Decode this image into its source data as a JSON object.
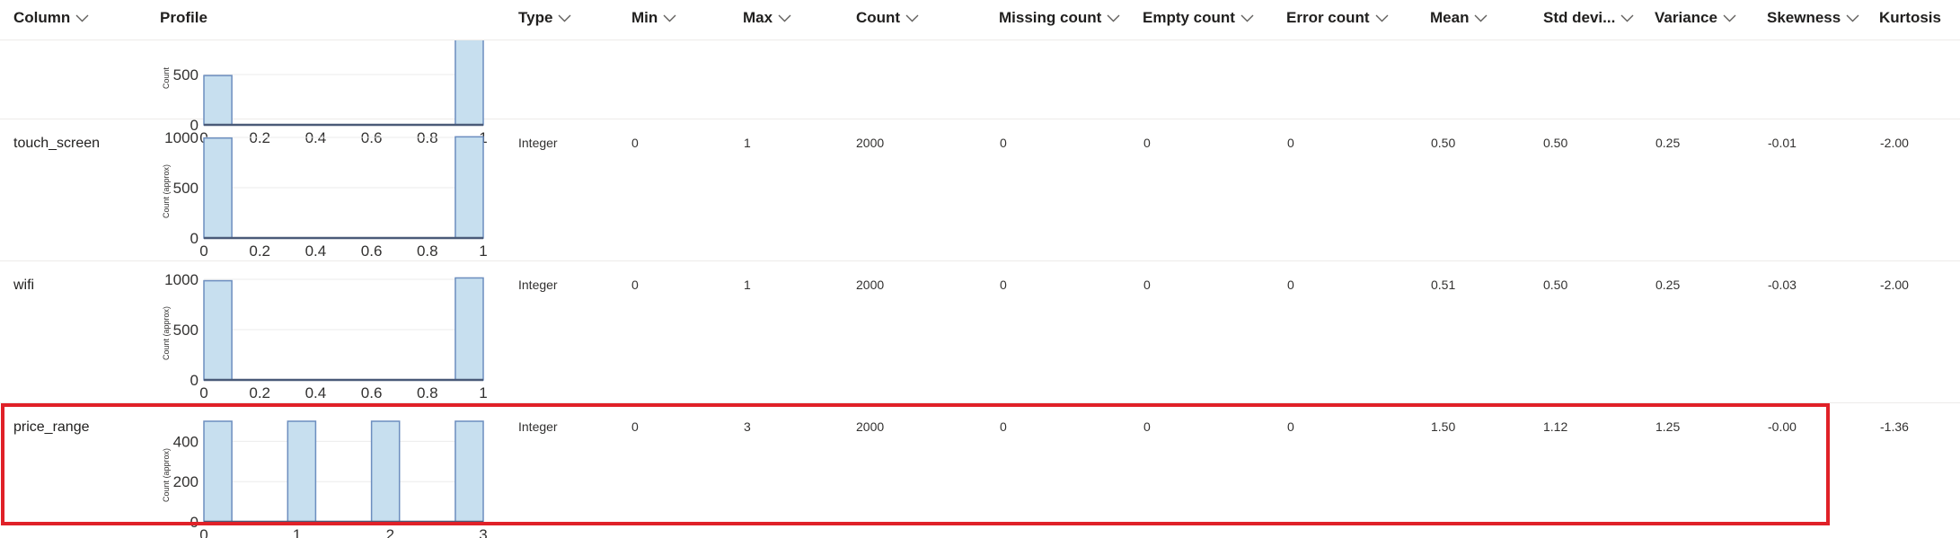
{
  "header": {
    "columns": [
      {
        "key": "column",
        "label": "Column"
      },
      {
        "key": "profile",
        "label": "Profile"
      },
      {
        "key": "type",
        "label": "Type"
      },
      {
        "key": "min",
        "label": "Min"
      },
      {
        "key": "max",
        "label": "Max"
      },
      {
        "key": "count",
        "label": "Count"
      },
      {
        "key": "missing",
        "label": "Missing count"
      },
      {
        "key": "empty",
        "label": "Empty count"
      },
      {
        "key": "error",
        "label": "Error count"
      },
      {
        "key": "mean",
        "label": "Mean"
      },
      {
        "key": "std",
        "label": "Std devi..."
      },
      {
        "key": "variance",
        "label": "Variance"
      },
      {
        "key": "skewness",
        "label": "Skewness"
      },
      {
        "key": "kurtosis",
        "label": "Kurtosis"
      }
    ]
  },
  "rows": [
    {
      "name": "",
      "type": "",
      "min": "",
      "max": "",
      "count": "",
      "missing": "",
      "empty": "",
      "error": "",
      "mean": "",
      "std": "",
      "variance": "",
      "skewness": "",
      "kurtosis": "",
      "selected": false
    },
    {
      "name": "touch_screen",
      "type": "Integer",
      "min": "0",
      "max": "1",
      "count": "2000",
      "missing": "0",
      "empty": "0",
      "error": "0",
      "mean": "0.50",
      "std": "0.50",
      "variance": "0.25",
      "skewness": "-0.01",
      "kurtosis": "-2.00",
      "selected": false
    },
    {
      "name": "wifi",
      "type": "Integer",
      "min": "0",
      "max": "1",
      "count": "2000",
      "missing": "0",
      "empty": "0",
      "error": "0",
      "mean": "0.51",
      "std": "0.50",
      "variance": "0.25",
      "skewness": "-0.03",
      "kurtosis": "-2.00",
      "selected": false
    },
    {
      "name": "price_range",
      "type": "Integer",
      "min": "0",
      "max": "3",
      "count": "2000",
      "missing": "0",
      "empty": "0",
      "error": "0",
      "mean": "1.50",
      "std": "1.12",
      "variance": "1.25",
      "skewness": "-0.00",
      "kurtosis": "-1.36",
      "selected": true
    }
  ],
  "chart_data": [
    {
      "type": "bar",
      "ylabel": "Count",
      "xlim": [
        0,
        1
      ],
      "ylim": [
        0,
        1000
      ],
      "xticks": [
        "0",
        "0.2",
        "0.4",
        "0.6",
        "0.8",
        "1"
      ],
      "yticks": [
        "0",
        "500"
      ],
      "bins": [
        {
          "x0": 0,
          "x1": 0.1,
          "value": 490
        },
        {
          "x0": 0.9,
          "x1": 1,
          "value": 1020
        }
      ]
    },
    {
      "type": "bar",
      "ylabel": "Count (approx)",
      "xlim": [
        0,
        1
      ],
      "ylim": [
        0,
        1000
      ],
      "xticks": [
        "0",
        "0.2",
        "0.4",
        "0.6",
        "0.8",
        "1"
      ],
      "yticks": [
        "0",
        "500",
        "1000"
      ],
      "bins": [
        {
          "x0": 0,
          "x1": 0.1,
          "value": 994
        },
        {
          "x0": 0.9,
          "x1": 1,
          "value": 1006
        }
      ]
    },
    {
      "type": "bar",
      "ylabel": "Count (approx)",
      "xlim": [
        0,
        1
      ],
      "ylim": [
        0,
        1000
      ],
      "xticks": [
        "0",
        "0.2",
        "0.4",
        "0.6",
        "0.8",
        "1"
      ],
      "yticks": [
        "0",
        "500",
        "1000"
      ],
      "bins": [
        {
          "x0": 0,
          "x1": 0.1,
          "value": 986
        },
        {
          "x0": 0.9,
          "x1": 1,
          "value": 1014
        }
      ]
    },
    {
      "type": "bar",
      "ylabel": "Count (approx)",
      "xlim": [
        0,
        3
      ],
      "ylim": [
        0,
        500
      ],
      "xticks": [
        "0",
        "1",
        "2",
        "3"
      ],
      "yticks": [
        "0",
        "200",
        "400"
      ],
      "bins": [
        {
          "x0": 0,
          "x1": 0.3,
          "value": 500
        },
        {
          "x0": 0.9,
          "x1": 1.2,
          "value": 500
        },
        {
          "x0": 1.8,
          "x1": 2.1,
          "value": 500
        },
        {
          "x0": 2.7,
          "x1": 3.0,
          "value": 500
        }
      ]
    }
  ],
  "colors": {
    "bar_fill": "#c7dfef",
    "bar_stroke": "#6c8ebf",
    "selection_border": "#e02128",
    "row_divider": "#edebe9"
  },
  "icons": {
    "sort": "chevron-down-icon"
  }
}
